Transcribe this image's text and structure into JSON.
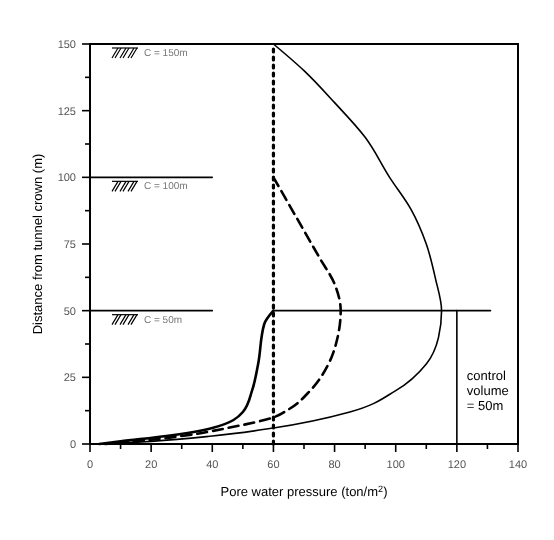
{
  "chart_data": {
    "type": "line",
    "xlabel": "Pore water pressure (ton/m$^{2}$)",
    "ylabel": "Distance from tunnel crown (m)",
    "xlim": [
      0,
      140
    ],
    "ylim": [
      0,
      150
    ],
    "xticks": [
      0,
      {
        "value": 10,
        "label": null
      },
      20,
      {
        "value": 30,
        "label": null
      },
      40,
      {
        "value": 50,
        "label": null
      },
      60,
      {
        "value": 70,
        "label": null
      },
      80,
      {
        "value": 90,
        "label": null
      },
      100,
      {
        "value": 110,
        "label": null
      },
      120,
      {
        "value": 130,
        "label": null
      },
      140
    ],
    "yticks": [
      0,
      {
        "value": 12.5,
        "label": null
      },
      25,
      {
        "value": 37.5,
        "label": null
      },
      50,
      {
        "value": 62.5,
        "label": null
      },
      75,
      {
        "value": 87.5,
        "label": null
      },
      100,
      {
        "value": 112.5,
        "label": null
      },
      125,
      {
        "value": 137.5,
        "label": null
      },
      150
    ],
    "grid": false,
    "series": [
      {
        "color": "#000000",
        "line_style": "solid",
        "x": [
          60,
          70,
          80,
          90,
          98,
          105,
          110,
          113,
          115,
          114,
          110,
          100,
          85,
          60,
          40,
          20,
          5
        ],
        "values": [
          150,
          140,
          128,
          115,
          100,
          88,
          75,
          62,
          50,
          40,
          30,
          20,
          12,
          6,
          3,
          1,
          0
        ]
      },
      {
        "color": "#000000",
        "line_style": "dashed",
        "x": [
          60,
          65,
          70,
          75,
          80,
          82,
          81,
          78,
          72,
          65,
          60,
          45,
          30,
          15,
          5
        ],
        "values": [
          100,
          90,
          80,
          70,
          60,
          50,
          40,
          30,
          20,
          13,
          10,
          6,
          3,
          1,
          0
        ]
      },
      {
        "color": "#000000",
        "line_style": "solid",
        "x": [
          60,
          57,
          55,
          53,
          50,
          40,
          25,
          10,
          3
        ],
        "values": [
          50,
          45,
          30,
          20,
          12,
          6,
          3,
          1,
          0
        ]
      },
      {
        "color": "#000000",
        "line_style": "dotted",
        "x": [
          60,
          60
        ],
        "values": [
          0,
          150
        ]
      },
      {
        "color": "#000000",
        "line_style": "solid",
        "x": [
          0,
          40
        ],
        "values": [
          100,
          100
        ]
      },
      {
        "color": "#000000",
        "line_style": "solid",
        "x": [
          0,
          40,
          50,
          60,
          131
        ],
        "values": [
          50,
          50,
          null,
          50,
          50
        ]
      },
      {
        "color": "#000000",
        "line_style": "solid",
        "x": [
          120,
          120
        ],
        "values": [
          0,
          50
        ]
      }
    ],
    "annotations": [
      "C = 150m",
      "C = 100m",
      "C = 50m",
      "control volume = 50m"
    ]
  }
}
